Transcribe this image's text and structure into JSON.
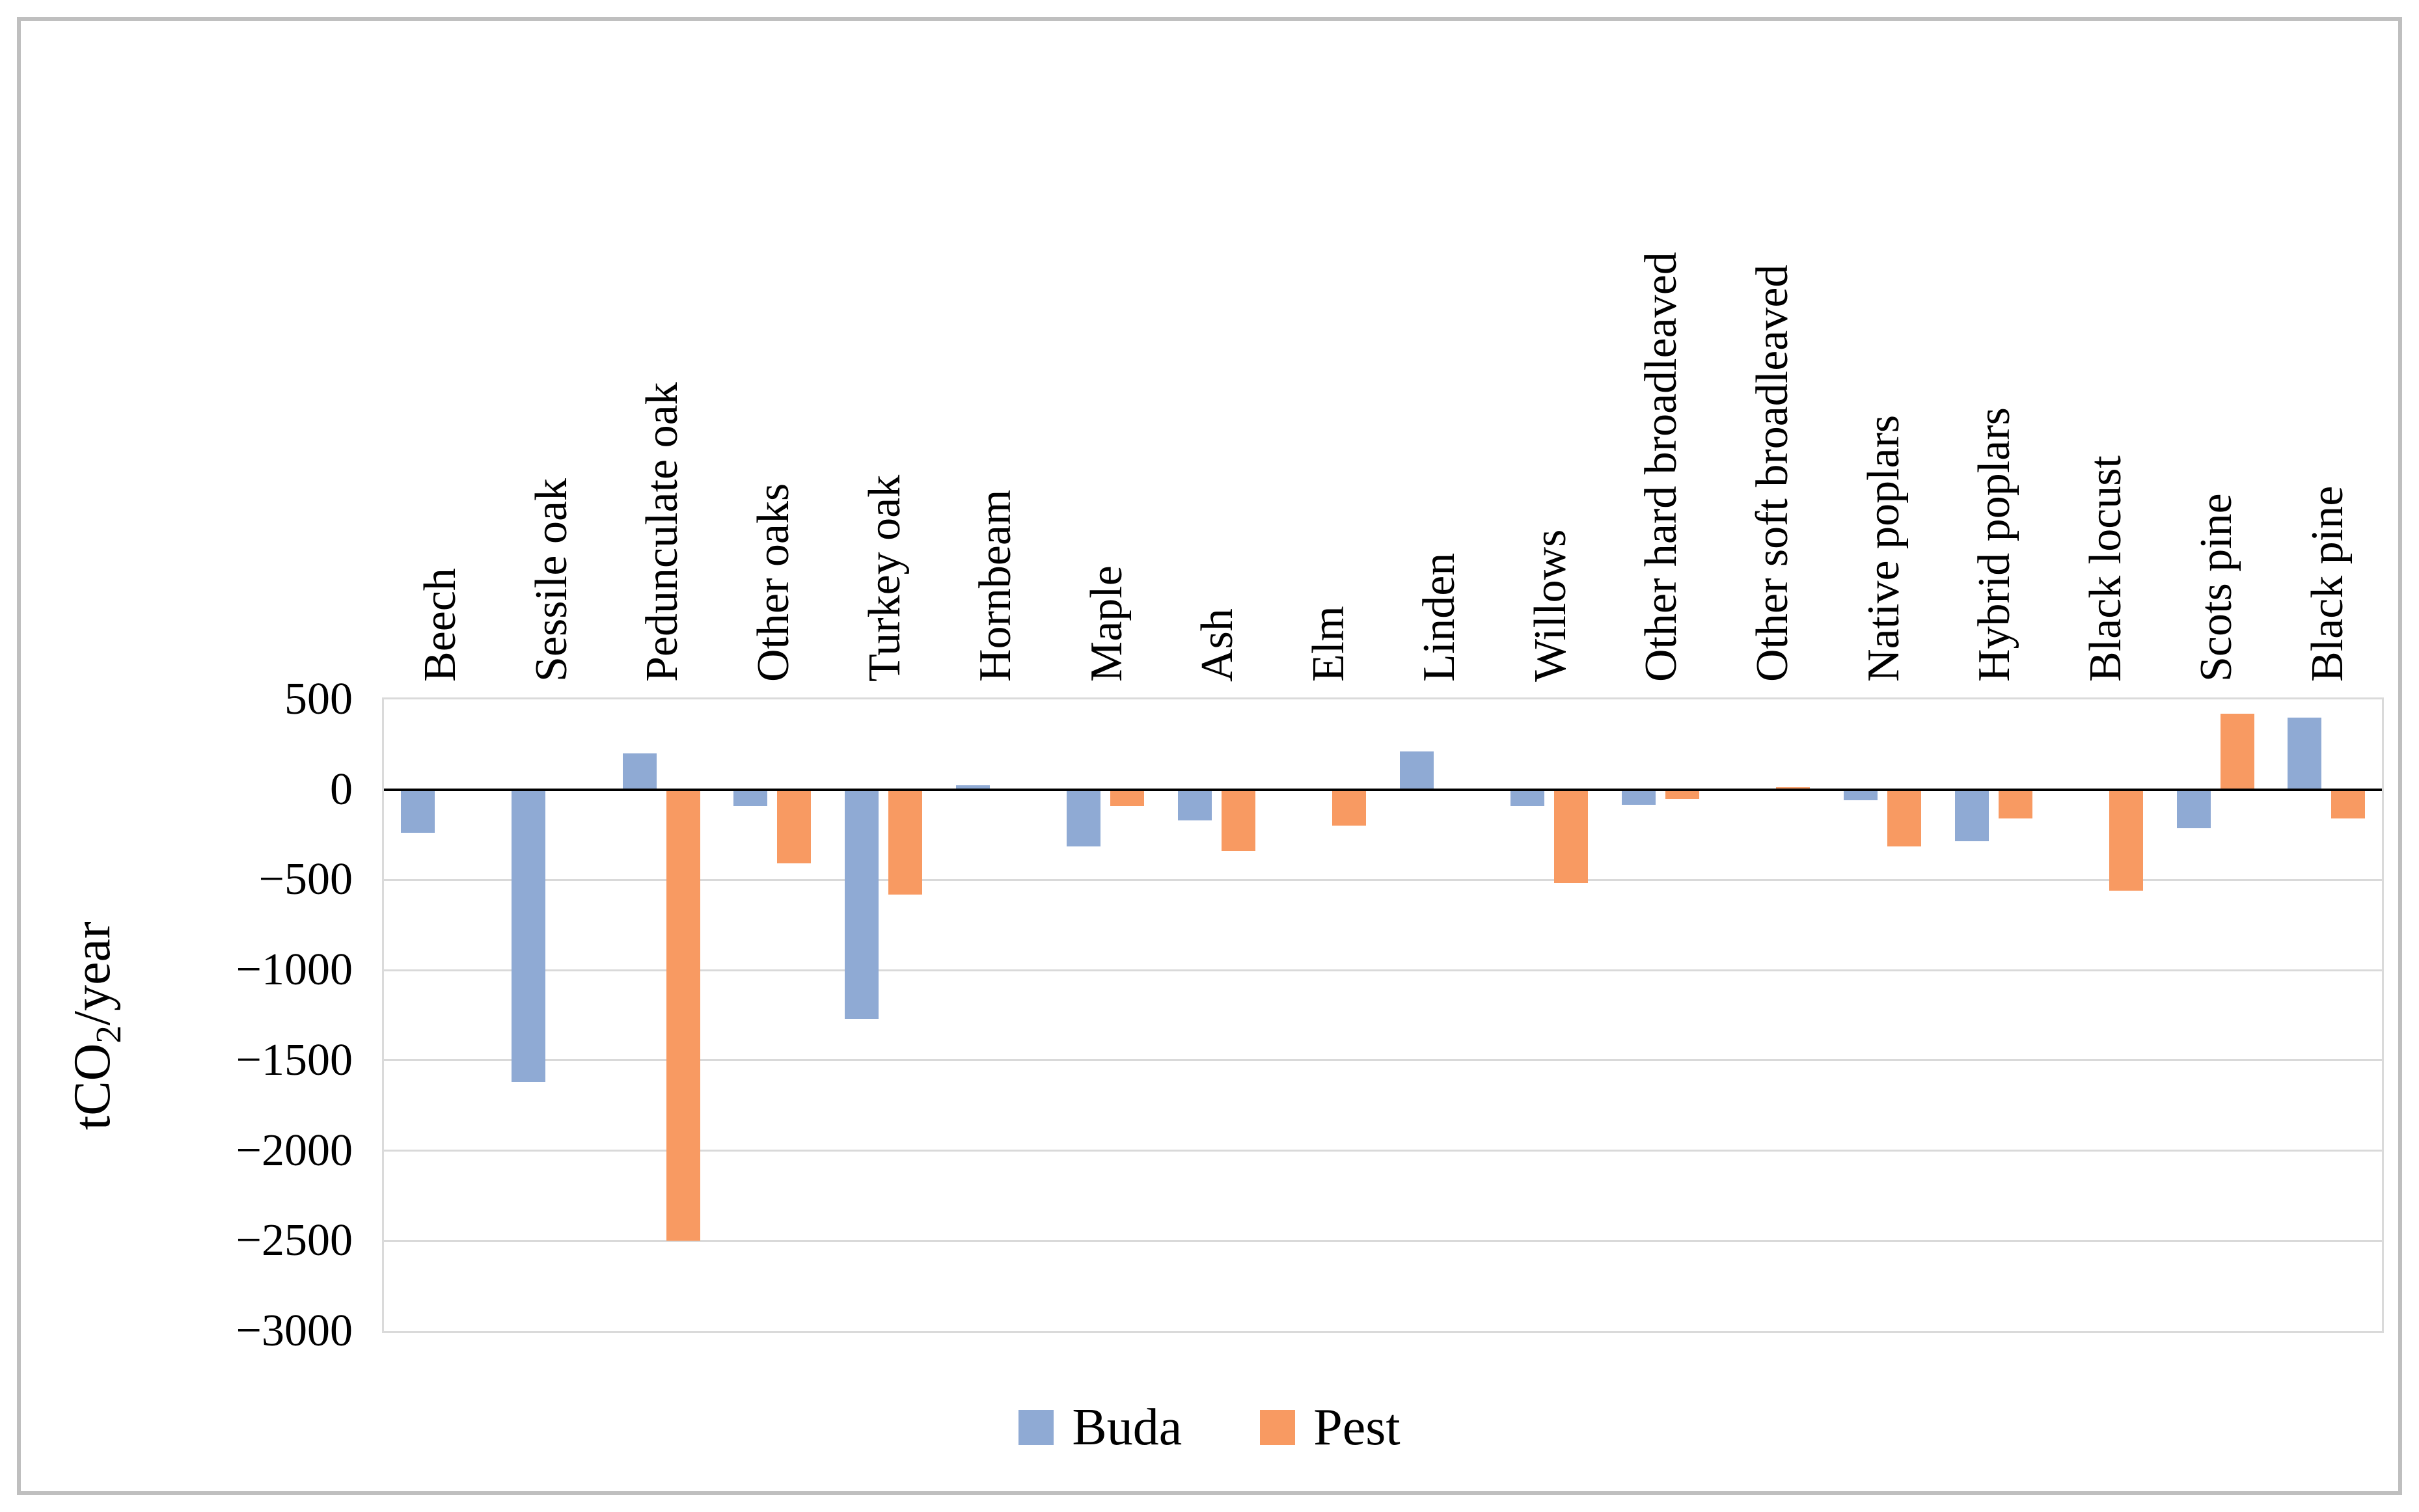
{
  "frame": {
    "border_color": "#BFBFBF",
    "background": "#FFFFFF"
  },
  "y_axis": {
    "title_prefix": "tCO",
    "title_sub": "2",
    "title_suffix": "/year",
    "tick_labels": [
      "500",
      "0",
      "−500",
      "−1000",
      "−1500",
      "−2000",
      "−2500",
      "−3000"
    ]
  },
  "chart_data": {
    "type": "bar",
    "title": "",
    "xlabel": "",
    "ylabel": "tCO2/year",
    "ylim": [
      -3000,
      500
    ],
    "y_ticks": [
      500,
      0,
      -500,
      -1000,
      -1500,
      -2000,
      -2500,
      -3000
    ],
    "grid": true,
    "legend_position": "bottom",
    "categories": [
      "Beech",
      "Sessile oak",
      "Pedunculate oak",
      "Other oaks",
      "Turkey oak",
      "Hornbeam",
      "Maple",
      "Ash",
      "Elm",
      "Linden",
      "Willows",
      "Other hard broadleaved",
      "Other soft broadleaved",
      "Native poplars",
      "Hybrid poplars",
      "Black locust",
      "Scots pine",
      "Black pine"
    ],
    "series": [
      {
        "name": "Buda",
        "color": "#8FAAD4",
        "values": [
          -240,
          -1620,
          200,
          -90,
          -1270,
          25,
          -315,
          -170,
          0,
          210,
          -90,
          -85,
          0,
          -60,
          -285,
          0,
          -215,
          400
        ]
      },
      {
        "name": "Pest",
        "color": "#F89A62",
        "values": [
          0,
          0,
          -2500,
          -410,
          -580,
          0,
          -90,
          -340,
          -200,
          0,
          -515,
          -50,
          15,
          -315,
          -160,
          -560,
          420,
          -160
        ]
      }
    ]
  },
  "style": {
    "gridline_color": "#D9D9D9",
    "zero_line_color": "#000000"
  }
}
